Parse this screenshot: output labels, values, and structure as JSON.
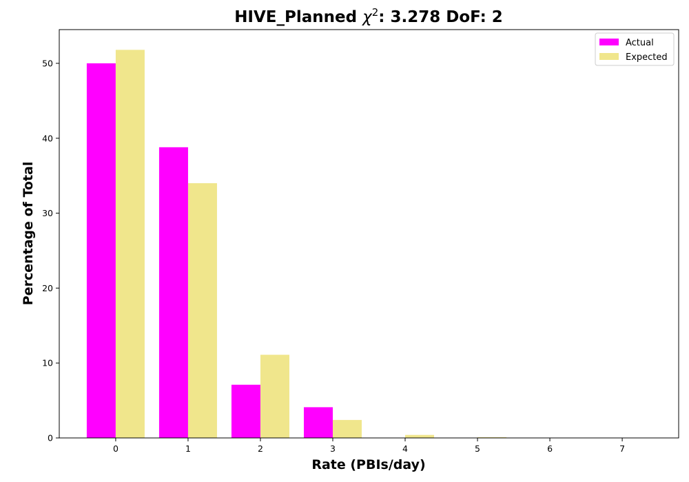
{
  "chart_data": {
    "type": "bar",
    "title_prefix": "HIVE_Planned ",
    "title_chi": "χ",
    "title_sup": "2",
    "title_suffix": ": 3.278 DoF: 2",
    "xlabel": "Rate (PBIs/day)",
    "ylabel": "Percentage of Total",
    "categories": [
      "0",
      "1",
      "2",
      "3",
      "4",
      "5",
      "6",
      "7"
    ],
    "ylim": [
      0,
      54.5
    ],
    "yticks": [
      0,
      10,
      20,
      30,
      40,
      50
    ],
    "series": [
      {
        "name": "Actual",
        "color": "#ff00ff",
        "values": [
          50.0,
          38.8,
          7.1,
          4.1,
          0,
          0,
          0,
          0
        ]
      },
      {
        "name": "Expected",
        "color": "#f0e68c",
        "values": [
          51.8,
          34.0,
          11.1,
          2.4,
          0.4,
          0.1,
          0.02,
          0.005
        ]
      }
    ],
    "legend_position": "top-right",
    "grid": false
  }
}
